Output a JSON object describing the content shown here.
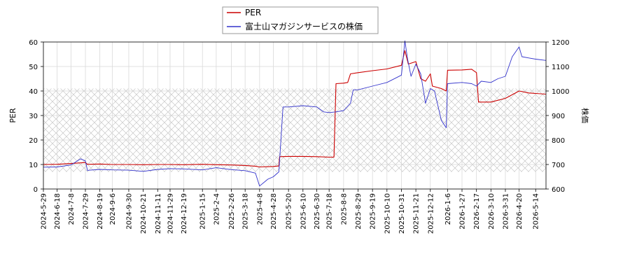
{
  "chart_data": {
    "type": "line",
    "title": "",
    "left_axis": {
      "label": "PER",
      "ylim": [
        0,
        60
      ],
      "ticks": [
        0,
        10,
        20,
        30,
        40,
        50,
        60
      ]
    },
    "right_axis": {
      "label": "株価",
      "ylim": [
        600,
        1200
      ],
      "ticks": [
        600,
        700,
        800,
        900,
        1000,
        1100,
        1200
      ]
    },
    "x_dates": {
      "start": "2024-05-29",
      "end": "2026-05-29",
      "tick_labels": [
        "2024-5-29",
        "2024-6-18",
        "2024-7-8",
        "2024-7-29",
        "2024-8-19",
        "2024-9-6",
        "2024-9-30",
        "2024-10-21",
        "2024-11-11",
        "2024-11-29",
        "2024-12-19",
        "2025-1-15",
        "2025-2-4",
        "2025-2-26",
        "2025-3-18",
        "2025-4-8",
        "2025-4-28",
        "2025-5-20",
        "2025-6-10",
        "2025-6-30",
        "2025-7-18",
        "2025-8-8",
        "2025-8-29",
        "2025-9-19",
        "2025-10-10",
        "2025-10-31",
        "2025-11-21",
        "2025-12-12",
        "2026-1-6",
        "2026-1-27",
        "2026-2-17",
        "2026-3-10",
        "2026-3-31",
        "2026-4-20",
        "2026-5-14"
      ]
    },
    "shaded_band": {
      "axis": "left",
      "from": 7,
      "to": 41
    },
    "grid": true,
    "legend_position": "top-center",
    "series": [
      {
        "name": "PER",
        "axis": "left",
        "color": "#cc0000",
        "points": [
          [
            "2024-05-29",
            10.0
          ],
          [
            "2024-06-18",
            10.1
          ],
          [
            "2024-07-08",
            10.4
          ],
          [
            "2024-07-29",
            10.8
          ],
          [
            "2024-08-01",
            10.1
          ],
          [
            "2024-08-19",
            10.2
          ],
          [
            "2024-09-06",
            10.0
          ],
          [
            "2024-09-30",
            10.0
          ],
          [
            "2024-10-21",
            9.9
          ],
          [
            "2024-11-11",
            10.0
          ],
          [
            "2024-11-29",
            10.0
          ],
          [
            "2024-12-19",
            9.9
          ],
          [
            "2025-01-15",
            10.1
          ],
          [
            "2025-02-04",
            9.9
          ],
          [
            "2025-02-26",
            9.8
          ],
          [
            "2025-03-18",
            9.6
          ],
          [
            "2025-04-02",
            9.3
          ],
          [
            "2025-04-08",
            9.0
          ],
          [
            "2025-04-28",
            9.2
          ],
          [
            "2025-05-06",
            9.4
          ],
          [
            "2025-05-07",
            13.2
          ],
          [
            "2025-05-20",
            13.3
          ],
          [
            "2025-06-10",
            13.3
          ],
          [
            "2025-06-30",
            13.2
          ],
          [
            "2025-07-18",
            13.0
          ],
          [
            "2025-07-25",
            13.0
          ],
          [
            "2025-07-28",
            43.0
          ],
          [
            "2025-08-08",
            43.2
          ],
          [
            "2025-08-14",
            43.5
          ],
          [
            "2025-08-18",
            47.0
          ],
          [
            "2025-08-29",
            47.5
          ],
          [
            "2025-09-19",
            48.3
          ],
          [
            "2025-10-10",
            49.0
          ],
          [
            "2025-10-31",
            50.5
          ],
          [
            "2025-11-05",
            56.5
          ],
          [
            "2025-11-10",
            51.0
          ],
          [
            "2025-11-21",
            52.0
          ],
          [
            "2025-11-28",
            45.0
          ],
          [
            "2025-12-05",
            44.0
          ],
          [
            "2025-12-12",
            47.0
          ],
          [
            "2025-12-15",
            42.0
          ],
          [
            "2025-12-28",
            41.0
          ],
          [
            "2026-01-04",
            40.0
          ],
          [
            "2026-01-06",
            48.5
          ],
          [
            "2026-01-27",
            48.6
          ],
          [
            "2026-02-10",
            48.9
          ],
          [
            "2026-02-17",
            47.5
          ],
          [
            "2026-02-20",
            35.5
          ],
          [
            "2026-03-10",
            35.5
          ],
          [
            "2026-03-31",
            37.0
          ],
          [
            "2026-04-20",
            40.0
          ],
          [
            "2026-05-04",
            39.2
          ],
          [
            "2026-05-14",
            39.0
          ],
          [
            "2026-05-29",
            38.7
          ]
        ]
      },
      {
        "name": "富士山マガジンサービスの株価",
        "axis": "right",
        "color": "#3333cc",
        "points": [
          [
            "2024-05-29",
            689
          ],
          [
            "2024-06-18",
            690
          ],
          [
            "2024-07-08",
            698
          ],
          [
            "2024-07-22",
            723
          ],
          [
            "2024-07-29",
            715
          ],
          [
            "2024-08-01",
            676
          ],
          [
            "2024-08-19",
            680
          ],
          [
            "2024-09-06",
            678
          ],
          [
            "2024-09-30",
            677
          ],
          [
            "2024-10-21",
            672
          ],
          [
            "2024-11-11",
            680
          ],
          [
            "2024-11-29",
            683
          ],
          [
            "2024-12-19",
            682
          ],
          [
            "2025-01-15",
            678
          ],
          [
            "2025-02-04",
            687
          ],
          [
            "2025-02-26",
            679
          ],
          [
            "2025-03-18",
            675
          ],
          [
            "2025-04-02",
            665
          ],
          [
            "2025-04-08",
            612
          ],
          [
            "2025-04-20",
            640
          ],
          [
            "2025-04-28",
            650
          ],
          [
            "2025-05-06",
            670
          ],
          [
            "2025-05-12",
            935
          ],
          [
            "2025-05-20",
            935
          ],
          [
            "2025-06-10",
            940
          ],
          [
            "2025-06-30",
            935
          ],
          [
            "2025-07-10",
            915
          ],
          [
            "2025-07-18",
            912
          ],
          [
            "2025-07-28",
            915
          ],
          [
            "2025-08-08",
            920
          ],
          [
            "2025-08-18",
            950
          ],
          [
            "2025-08-22",
            1005
          ],
          [
            "2025-08-29",
            1005
          ],
          [
            "2025-09-19",
            1020
          ],
          [
            "2025-10-10",
            1035
          ],
          [
            "2025-10-31",
            1065
          ],
          [
            "2025-11-05",
            1205
          ],
          [
            "2025-11-09",
            1130
          ],
          [
            "2025-11-14",
            1060
          ],
          [
            "2025-11-21",
            1110
          ],
          [
            "2025-11-28",
            1070
          ],
          [
            "2025-12-05",
            950
          ],
          [
            "2025-12-12",
            1010
          ],
          [
            "2025-12-18",
            1000
          ],
          [
            "2025-12-28",
            880
          ],
          [
            "2026-01-04",
            850
          ],
          [
            "2026-01-06",
            1030
          ],
          [
            "2026-01-27",
            1035
          ],
          [
            "2026-02-10",
            1030
          ],
          [
            "2026-02-17",
            1020
          ],
          [
            "2026-02-24",
            1040
          ],
          [
            "2026-03-10",
            1035
          ],
          [
            "2026-03-20",
            1050
          ],
          [
            "2026-03-31",
            1060
          ],
          [
            "2026-04-10",
            1140
          ],
          [
            "2026-04-20",
            1180
          ],
          [
            "2026-04-24",
            1140
          ],
          [
            "2026-05-04",
            1135
          ],
          [
            "2026-05-14",
            1130
          ],
          [
            "2026-05-29",
            1125
          ]
        ]
      }
    ]
  }
}
